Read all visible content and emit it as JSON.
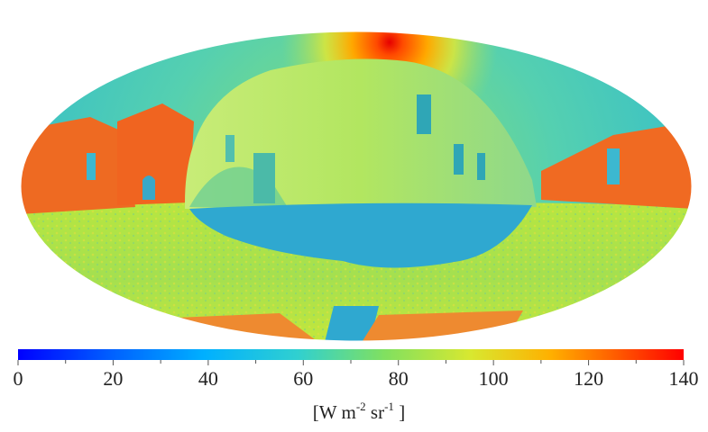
{
  "chart_data": {
    "type": "heatmap",
    "projection": "mollweide",
    "title": "",
    "colorbar": {
      "min": 0,
      "max": 140,
      "ticks": [
        0,
        20,
        40,
        60,
        80,
        100,
        120,
        140
      ],
      "tick_labels": [
        "0",
        "20",
        "40",
        "60",
        "80",
        "100",
        "120",
        "140"
      ],
      "unit": {
        "base": "[W m",
        "exp1": "-2",
        "mid": " sr",
        "exp2": "-1",
        "end": " ]"
      },
      "colormap": "jet",
      "colors": [
        "#0000ff",
        "#0080ff",
        "#00d0ff",
        "#40e0c0",
        "#a0e040",
        "#ffe000",
        "#ff8000",
        "#ff0000"
      ]
    },
    "scene_values": {
      "sky_background": 65,
      "sun_peak": 140,
      "sunlit_facades": 110,
      "shadowed_facade": 80,
      "shaded_ground": 45,
      "paved_ground": 90
    }
  }
}
